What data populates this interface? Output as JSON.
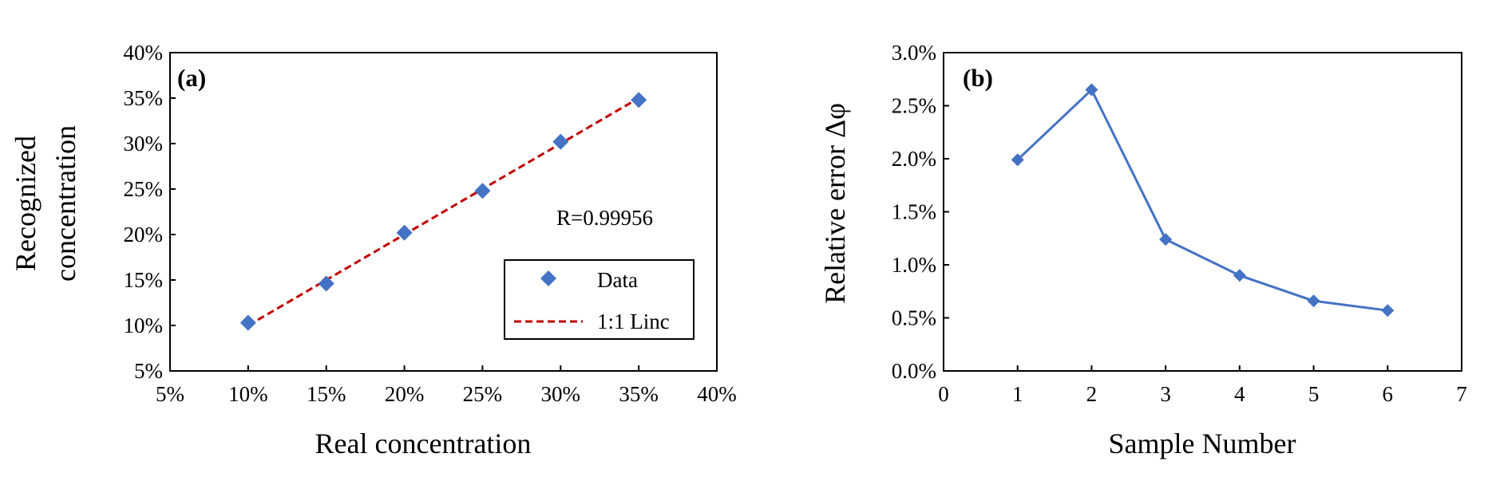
{
  "chart_data": [
    {
      "type": "scatter",
      "panel_label": "(a)",
      "xlabel": "Real concentration",
      "ylabel_lines": [
        "Recognized",
        "concentration"
      ],
      "xlim": [
        5,
        40
      ],
      "ylim": [
        5,
        40
      ],
      "x_ticks": [
        "5%",
        "10%",
        "15%",
        "20%",
        "25%",
        "30%",
        "35%",
        "40%"
      ],
      "y_ticks": [
        "5%",
        "10%",
        "15%",
        "20%",
        "25%",
        "30%",
        "35%",
        "40%"
      ],
      "grid": false,
      "annotation": "R=0.99956",
      "legend_position": "lower-right",
      "series": [
        {
          "name": "Data",
          "marker": "diamond",
          "color": "#4472C4",
          "x": [
            10,
            15,
            20,
            25,
            30,
            35
          ],
          "y": [
            10.3,
            14.6,
            20.2,
            24.8,
            30.2,
            34.8
          ]
        },
        {
          "name": "1:1 Linc",
          "style": "dashed",
          "color": "#C00000",
          "x": [
            10,
            35
          ],
          "y": [
            10,
            35
          ]
        }
      ]
    },
    {
      "type": "line",
      "panel_label": "(b)",
      "xlabel": "Sample Number",
      "ylabel": "Relative error Δφ",
      "xlim": [
        0,
        7
      ],
      "ylim": [
        0,
        3.0
      ],
      "x_ticks": [
        "0",
        "1",
        "2",
        "3",
        "4",
        "5",
        "6",
        "7"
      ],
      "y_ticks": [
        "0.0%",
        "0.5%",
        "1.0%",
        "1.5%",
        "2.0%",
        "2.5%",
        "3.0%"
      ],
      "grid": false,
      "series": [
        {
          "marker": "diamond",
          "color": "#4472C4",
          "x": [
            1,
            2,
            3,
            4,
            5,
            6
          ],
          "y": [
            1.99,
            2.65,
            1.24,
            0.9,
            0.66,
            0.57
          ]
        }
      ]
    }
  ]
}
